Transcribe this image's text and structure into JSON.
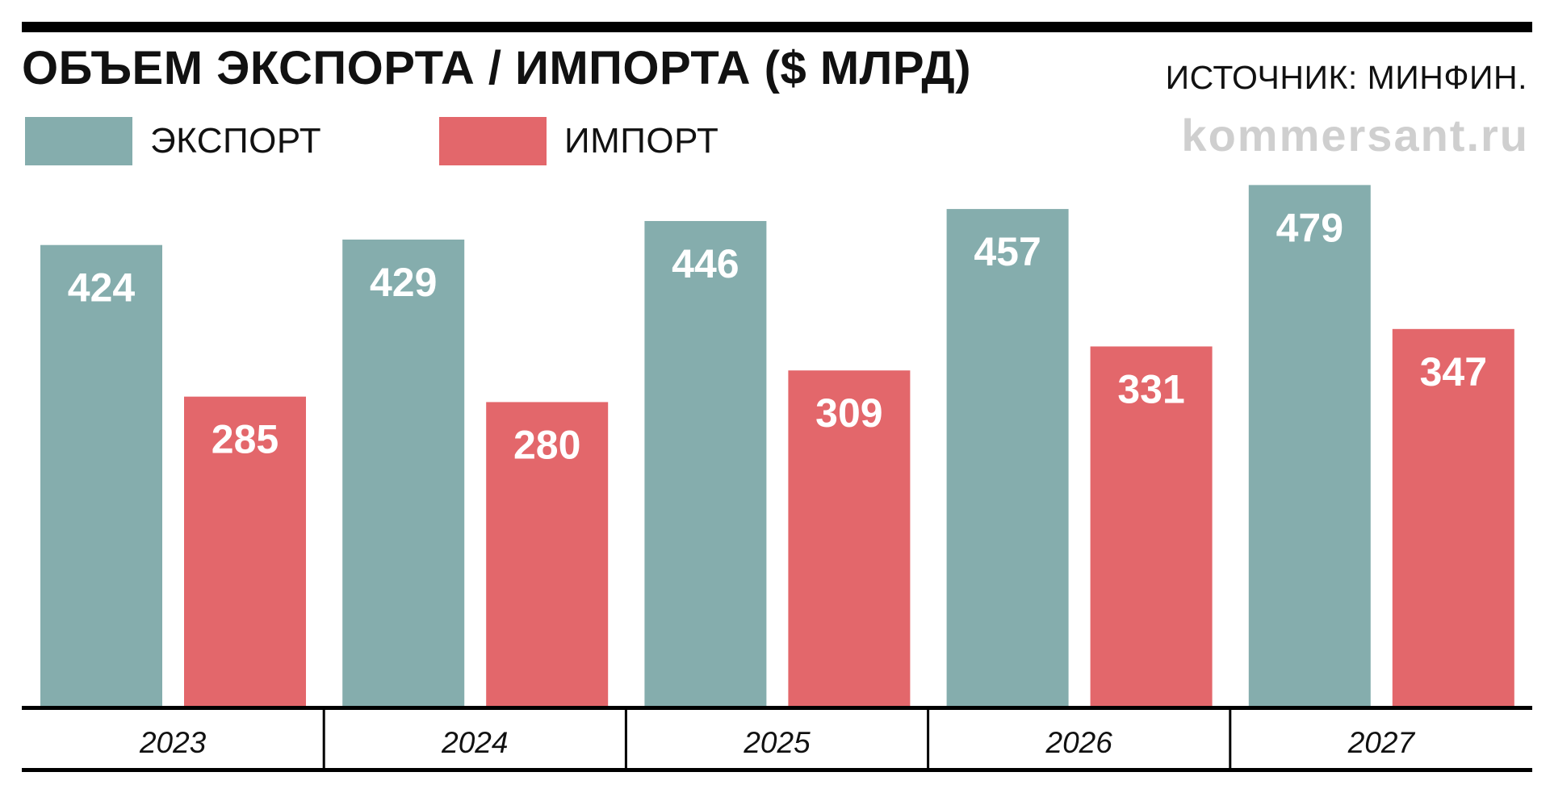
{
  "header": {
    "title": "ОБЪЕМ ЭКСПОРТА / ИМПОРТА ($ МЛРД)",
    "source": "ИСТОЧНИК: МИНФИН.",
    "watermark": "kommersant.ru"
  },
  "legend": [
    {
      "label": "ЭКСПОРТ",
      "color": "#85adad"
    },
    {
      "label": "ИМПОРТ",
      "color": "#e3676b"
    }
  ],
  "chart_data": {
    "type": "bar",
    "title": "ОБЪЕМ ЭКСПОРТА / ИМПОРТА ($ МЛРД)",
    "categories": [
      "2023",
      "2024",
      "2025",
      "2026",
      "2027"
    ],
    "series": [
      {
        "name": "ЭКСПОРТ",
        "values": [
          424,
          429,
          446,
          457,
          479
        ],
        "color": "#85adad"
      },
      {
        "name": "ИМПОРТ",
        "values": [
          285,
          280,
          309,
          331,
          347
        ],
        "color": "#e3676b"
      }
    ],
    "ylim": [
      0,
      480
    ],
    "grid": false,
    "legend_position": "top-left",
    "data_labels": true
  }
}
